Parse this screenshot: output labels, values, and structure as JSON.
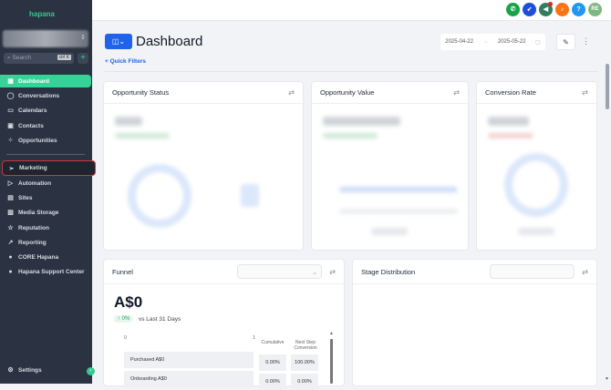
{
  "sidebar": {
    "logo": "hapana",
    "search_placeholder": "Search",
    "search_shortcut": "ctrl K",
    "items": [
      {
        "label": "Dashboard",
        "icon": "grid-icon"
      },
      {
        "label": "Conversations",
        "icon": "chat-icon"
      },
      {
        "label": "Calendars",
        "icon": "calendar-icon"
      },
      {
        "label": "Contacts",
        "icon": "contacts-icon"
      },
      {
        "label": "Opportunities",
        "icon": "opportunities-icon"
      },
      {
        "label": "Marketing",
        "icon": "send-icon"
      },
      {
        "label": "Automation",
        "icon": "automation-icon"
      },
      {
        "label": "Sites",
        "icon": "sites-icon"
      },
      {
        "label": "Media Storage",
        "icon": "image-icon"
      },
      {
        "label": "Reputation",
        "icon": "star-icon"
      },
      {
        "label": "Reporting",
        "icon": "trend-icon"
      },
      {
        "label": "CORE Hapana",
        "icon": "core-icon"
      },
      {
        "label": "Hapana Support Center",
        "icon": "help-icon"
      }
    ],
    "settings": "Settings",
    "active": "Dashboard",
    "highlighted": "Marketing"
  },
  "topbar": {
    "icons": [
      {
        "name": "phone-icon",
        "color": "#16a34a"
      },
      {
        "name": "rocket-icon",
        "color": "#1d4ed8"
      },
      {
        "name": "megaphone-icon",
        "color": "#2f7d5b"
      },
      {
        "name": "bell-icon",
        "color": "#f97316"
      },
      {
        "name": "help-icon",
        "color": "#2196f3"
      }
    ],
    "avatar": "RE"
  },
  "header": {
    "title": "Dashboard",
    "quick_filters": "+ Quick Filters",
    "date_start": "2025-04-22",
    "date_end": "2025-05-22",
    "date_sep": "→"
  },
  "cards": {
    "opportunity_status": "Opportunity Status",
    "opportunity_value": "Opportunity Value",
    "conversion_rate": "Conversion Rate",
    "stage_distribution": "Stage Distribution"
  },
  "funnel": {
    "title": "Funnel",
    "total": "A$0",
    "change": "↑ 0%",
    "comparison": "vs Last 31 Days",
    "axis_min": "0",
    "axis_max": "1",
    "col_cumulative": "Cumulative",
    "col_next": "Next Step Conversion",
    "rows": [
      {
        "label": "Purchased  A$0",
        "cumulative": "0.00%",
        "next": "100.00%"
      },
      {
        "label": "Onboarding  A$0",
        "cumulative": "0.00%",
        "next": "0.00%"
      }
    ]
  },
  "colors": {
    "accent": "#36d399",
    "primary": "#1e63e9",
    "sidebar": "#2b3342",
    "highlight_border": "#d3343e"
  }
}
